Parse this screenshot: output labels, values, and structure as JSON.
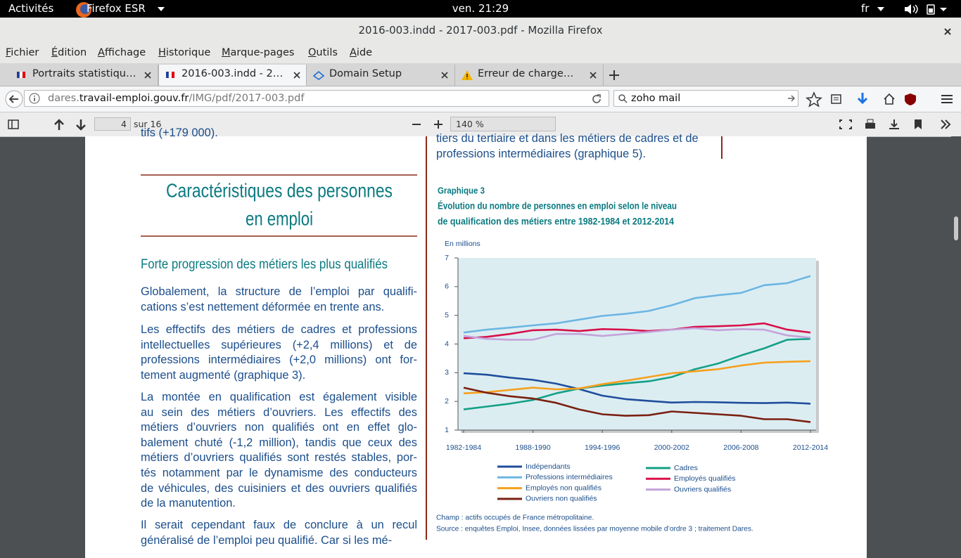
{
  "system_bar": {
    "activities": "Activités",
    "app_name": "Firefox ESR",
    "clock": "ven. 21:29",
    "keyboard": "fr"
  },
  "window": {
    "title": "2016-003.indd - 2017-003.pdf - Mozilla Firefox"
  },
  "menu": [
    "Fichier",
    "Édition",
    "Affichage",
    "Historique",
    "Marque-pages",
    "Outils",
    "Aide"
  ],
  "tabs": [
    {
      "title": "Portraits statistiqu…",
      "active": false
    },
    {
      "title": "2016-003.indd - 2…",
      "active": true
    },
    {
      "title": "Domain Setup",
      "active": false
    },
    {
      "title": "Erreur de charge…",
      "active": false
    }
  ],
  "address_bar": {
    "url_prefix": "dares.",
    "url_domain": "travail-emploi.gouv.fr",
    "url_path": "/IMG/pdf/2017-003.pdf"
  },
  "search_bar": {
    "query": "zoho mail"
  },
  "pdf_toolbar": {
    "page_number": "4",
    "page_count": "sur 16",
    "zoom": "140 %"
  },
  "document": {
    "left_top_fragment": "tifs (+179 000).",
    "right_top_lines": [
      "tiers du tertiaire et dans les métiers de cadres et de",
      "professions intermédiaires (graphique 5)."
    ],
    "section_title": [
      "Caractéristiques des personnes",
      "en emploi"
    ],
    "subsection_title": "Forte progression des métiers les plus qualifiés",
    "paragraphs": [
      [
        "Globalement, la structure de l’emploi par qualifi-",
        "cations s’est nettement déformée en trente ans."
      ],
      [
        "Les effectifs des métiers de cadres et professions",
        "intellectuelles supérieures (+2,4 millions) et de",
        "professions intermédiaires (+2,0 millions) ont for-",
        "tement augmenté (graphique 3)."
      ],
      [
        "La montée en qualification est également visible",
        "au sein des métiers d’ouvriers. Les effectifs des",
        "métiers d’ouvriers non qualifiés ont en effet glo-",
        "balement chuté (-1,2 million), tandis que ceux des",
        "métiers d’ouvriers qualifiés sont restés stables, por-",
        "tés notamment par le dynamisme des conducteurs",
        "de véhicules, des cuisiniers et des ouvriers qualifiés",
        "de la manutention."
      ],
      [
        "Il serait cependant faux de conclure à un recul",
        "généralisé de l’emploi peu qualifié. Car si les mé-"
      ]
    ]
  },
  "chart_data": {
    "type": "line",
    "label": "Graphique 3",
    "title": [
      "Évolution du nombre de personnes en emploi selon le niveau",
      "de qualification des métiers entre 1982-1984 et 2012-2014"
    ],
    "y_unit": "En millions",
    "categories": [
      "1982-1984",
      null,
      null,
      "1988-1990",
      null,
      null,
      "1994-1996",
      null,
      null,
      "2000-2002",
      null,
      null,
      "2006-2008",
      null,
      null,
      "2012-2014"
    ],
    "ylim": [
      1,
      7
    ],
    "yticks": [
      1,
      2,
      3,
      4,
      5,
      6,
      7
    ],
    "legend": "bottom",
    "series": [
      {
        "name": "Indépendants",
        "color": "#1f4e9c",
        "values": [
          2.98,
          2.93,
          2.83,
          2.75,
          2.62,
          2.43,
          2.2,
          2.08,
          2.02,
          1.96,
          1.98,
          1.97,
          1.95,
          1.94,
          1.96,
          1.92
        ]
      },
      {
        "name": "Cadres",
        "color": "#13a086",
        "values": [
          1.72,
          1.82,
          1.92,
          2.05,
          2.28,
          2.45,
          2.55,
          2.63,
          2.7,
          2.85,
          3.12,
          3.32,
          3.6,
          3.85,
          4.15,
          4.18
        ]
      },
      {
        "name": "Professions intermédiaires",
        "color": "#6cb6e2",
        "values": [
          4.4,
          4.5,
          4.57,
          4.65,
          4.72,
          4.85,
          4.98,
          5.05,
          5.15,
          5.35,
          5.6,
          5.7,
          5.78,
          6.05,
          6.12,
          6.37
        ]
      },
      {
        "name": "Employés qualifiés",
        "color": "#d8104a",
        "values": [
          4.2,
          4.25,
          4.35,
          4.48,
          4.5,
          4.45,
          4.52,
          4.5,
          4.45,
          4.5,
          4.6,
          4.62,
          4.65,
          4.72,
          4.5,
          4.4
        ]
      },
      {
        "name": "Employés non qualifiés",
        "color": "#f5a01e",
        "values": [
          2.28,
          2.32,
          2.4,
          2.48,
          2.42,
          2.45,
          2.6,
          2.72,
          2.85,
          2.98,
          3.05,
          3.12,
          3.25,
          3.35,
          3.38,
          3.4
        ]
      },
      {
        "name": "Ouvriers qualifiés",
        "color": "#c3a3da",
        "values": [
          4.28,
          4.18,
          4.15,
          4.15,
          4.35,
          4.35,
          4.28,
          4.35,
          4.42,
          4.5,
          4.55,
          4.48,
          4.52,
          4.5,
          4.3,
          4.22
        ]
      },
      {
        "name": "Ouvriers non qualifiés",
        "color": "#7a2010",
        "values": [
          2.48,
          2.3,
          2.18,
          2.1,
          1.95,
          1.72,
          1.55,
          1.5,
          1.52,
          1.65,
          1.6,
          1.55,
          1.5,
          1.38,
          1.38,
          1.28
        ]
      }
    ],
    "notes": [
      "Champ : actifs occupés de France métropolitaine.",
      "Source : enquêtes Emploi, Insee, données lissées par moyenne mobile d’ordre 3 ; traitement Dares."
    ]
  }
}
